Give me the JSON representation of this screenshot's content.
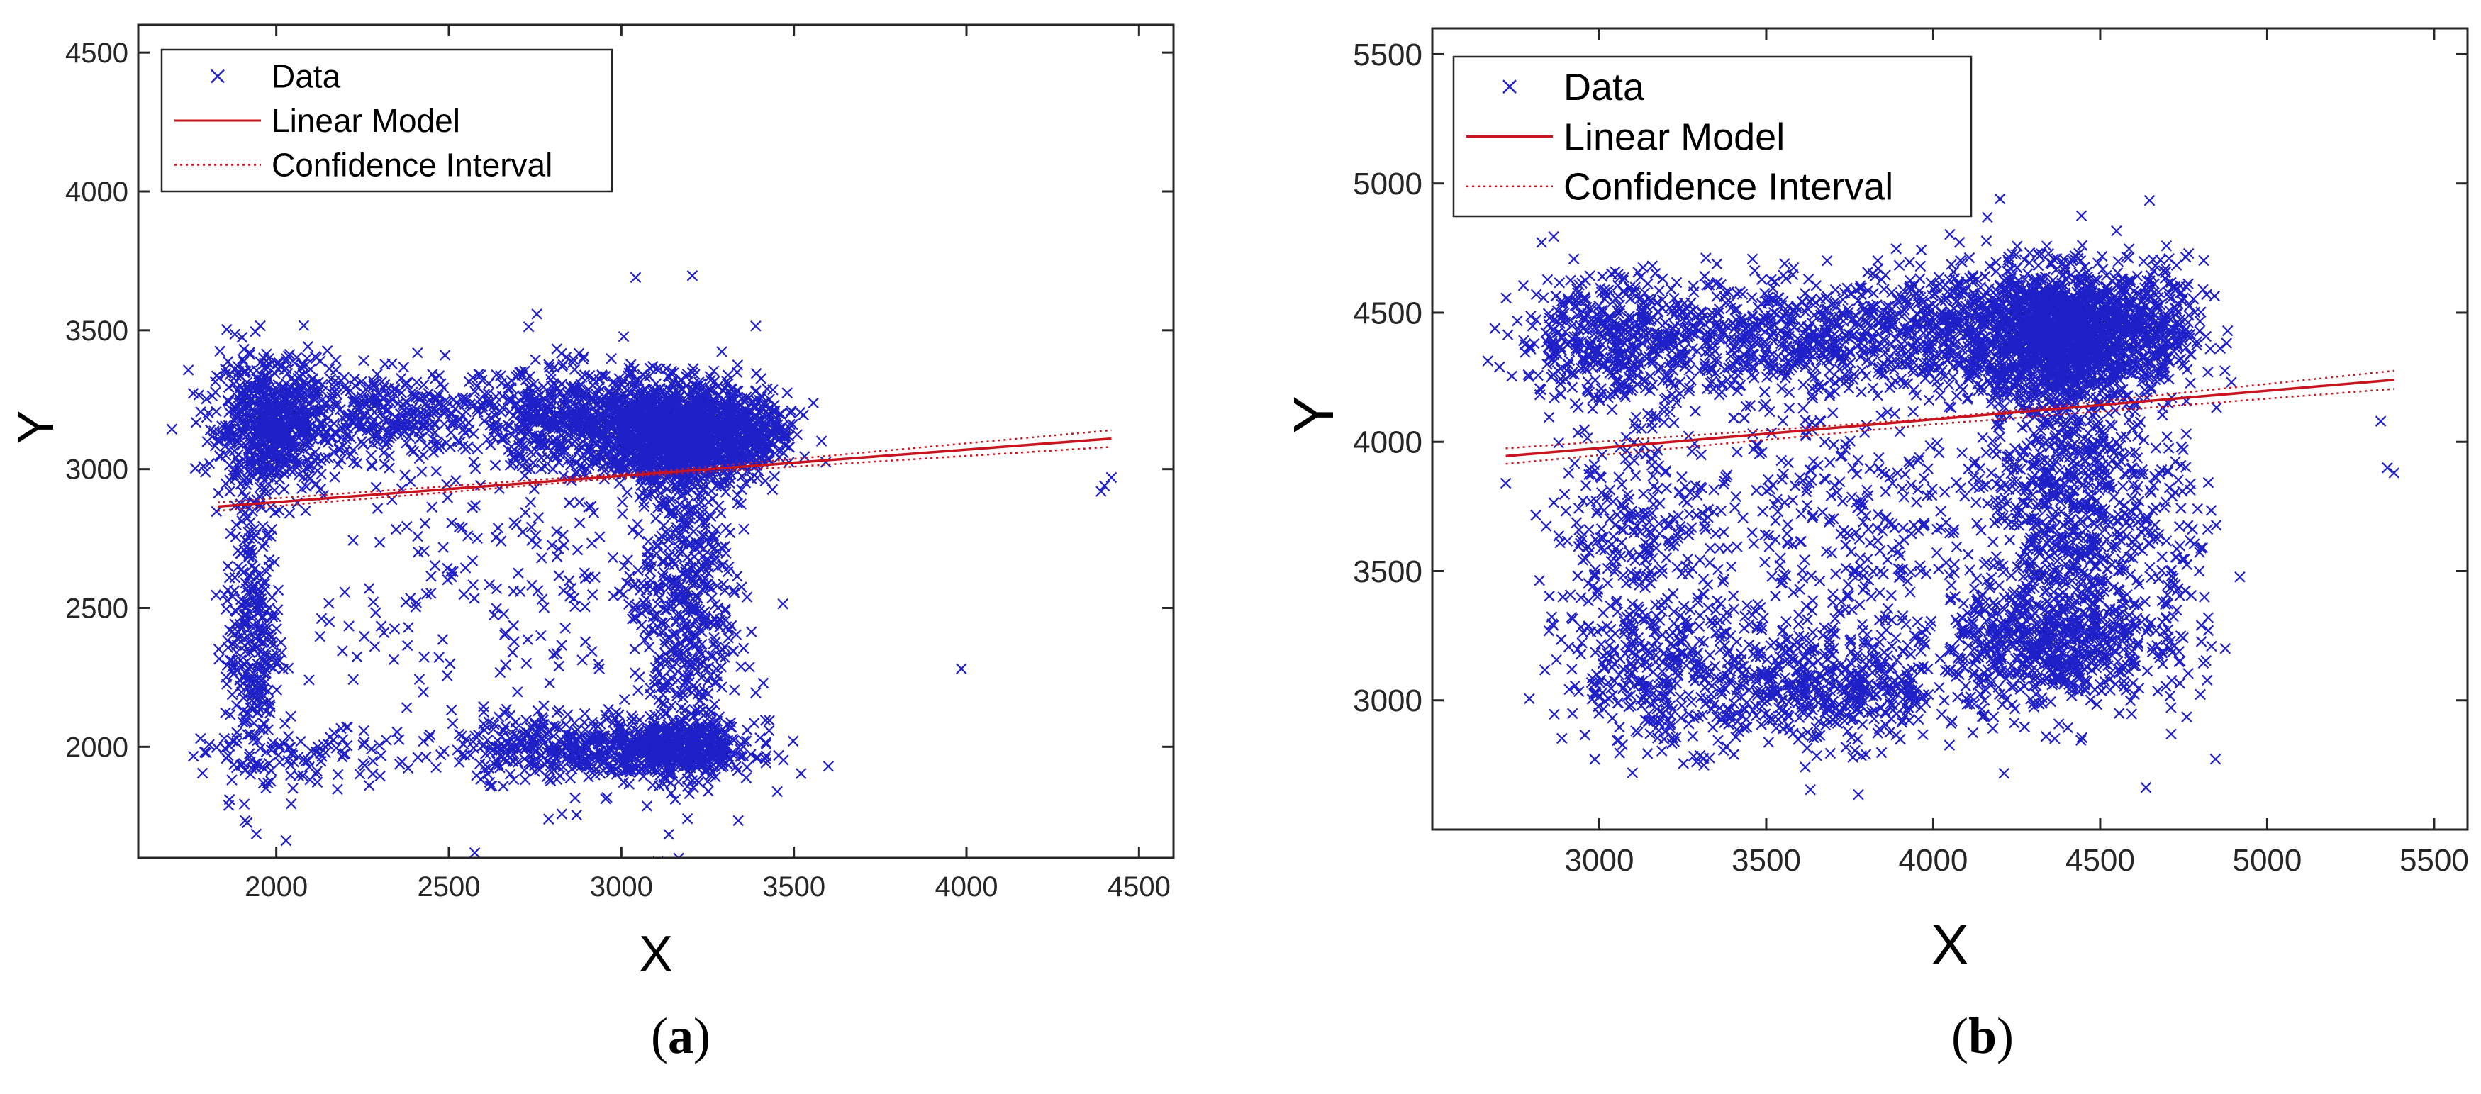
{
  "chart_data": [
    {
      "type": "scatter",
      "panel": "(a)",
      "panel_letter": "a",
      "xlabel": "X",
      "ylabel": "Y",
      "xlim": [
        1600,
        4600
      ],
      "ylim": [
        1600,
        4600
      ],
      "xticks": [
        2000,
        2500,
        3000,
        3500,
        4000,
        4500
      ],
      "yticks": [
        2000,
        2500,
        3000,
        3500,
        4000,
        4500
      ],
      "legend": {
        "position": "top-left",
        "entries": [
          "Data",
          "Linear Model",
          "Confidence Interval"
        ]
      },
      "colors": {
        "data": "#2020c8",
        "model": "#c8141e",
        "ci": "#c8141e"
      },
      "series": [
        {
          "name": "Data",
          "kind": "scatter",
          "marker": "x",
          "point_count_estimate": 6000,
          "clusters": [
            {
              "cx": 1990,
              "cy": 3160,
              "sx": 90,
              "sy": 120,
              "n": 700,
              "desc": "dense band at left"
            },
            {
              "cx": 2350,
              "cy": 3200,
              "sx": 180,
              "sy": 80,
              "n": 350,
              "desc": "upper band middle"
            },
            {
              "cx": 2850,
              "cy": 3180,
              "sx": 130,
              "sy": 90,
              "n": 500,
              "desc": "upper band right"
            },
            {
              "cx": 3160,
              "cy": 3130,
              "sx": 120,
              "sy": 90,
              "n": 1500,
              "desc": "densest blob"
            },
            {
              "cx": 3380,
              "cy": 3120,
              "sx": 70,
              "sy": 70,
              "n": 200,
              "desc": "tail of blob"
            },
            {
              "cx": 1930,
              "cy": 2400,
              "sx": 40,
              "sy": 280,
              "n": 320,
              "desc": "left vertical strip"
            },
            {
              "cx": 3180,
              "cy": 2550,
              "sx": 70,
              "sy": 320,
              "n": 550,
              "desc": "right vertical strip"
            },
            {
              "cx": 2850,
              "cy": 2000,
              "sx": 170,
              "sy": 60,
              "n": 400,
              "desc": "bottom band"
            },
            {
              "cx": 3170,
              "cy": 1990,
              "sx": 110,
              "sy": 50,
              "n": 500,
              "desc": "bottom right dense"
            },
            {
              "cx": 2700,
              "cy": 2600,
              "sx": 300,
              "sy": 350,
              "n": 250,
              "desc": "sparse middle"
            },
            {
              "cx": 2100,
              "cy": 1960,
              "sx": 150,
              "sy": 50,
              "n": 100,
              "desc": "bottom left"
            }
          ],
          "outliers": [
            [
              4400,
              2940
            ],
            [
              4420,
              2970
            ],
            [
              4390,
              2920
            ],
            [
              3600,
              1930
            ]
          ]
        },
        {
          "name": "Linear Model",
          "kind": "line",
          "x": [
            1830,
            4420
          ],
          "y": [
            2865,
            3110
          ]
        },
        {
          "name": "Confidence Interval",
          "kind": "band",
          "x": [
            1830,
            3100,
            4420
          ],
          "lower": [
            2850,
            2978,
            3080
          ],
          "upper": [
            2880,
            2992,
            3140
          ]
        }
      ]
    },
    {
      "type": "scatter",
      "panel": "(b)",
      "panel_letter": "b",
      "xlabel": "X",
      "ylabel": "Y",
      "xlim": [
        2500,
        5600
      ],
      "ylim": [
        2500,
        5600
      ],
      "xticks": [
        3000,
        3500,
        4000,
        4500,
        5000,
        5500
      ],
      "yticks": [
        3000,
        3500,
        4000,
        4500,
        5000,
        5500
      ],
      "legend": {
        "position": "top-left",
        "entries": [
          "Data",
          "Linear Model",
          "Confidence Interval"
        ]
      },
      "colors": {
        "data": "#2020c8",
        "model": "#c8141e",
        "ci": "#c8141e"
      },
      "series": [
        {
          "name": "Data",
          "kind": "scatter",
          "marker": "x",
          "point_count_estimate": 6500,
          "clusters": [
            {
              "cx": 3050,
              "cy": 4400,
              "sx": 150,
              "sy": 130,
              "n": 500,
              "desc": "upper left"
            },
            {
              "cx": 3600,
              "cy": 4400,
              "sx": 250,
              "sy": 110,
              "n": 600,
              "desc": "upper middle"
            },
            {
              "cx": 4380,
              "cy": 4420,
              "sx": 140,
              "sy": 120,
              "n": 1500,
              "desc": "densest blob"
            },
            {
              "cx": 4100,
              "cy": 4450,
              "sx": 180,
              "sy": 130,
              "n": 400,
              "desc": "upper center"
            },
            {
              "cx": 4650,
              "cy": 4420,
              "sx": 80,
              "sy": 140,
              "n": 250,
              "desc": "upper right"
            },
            {
              "cx": 4400,
              "cy": 3800,
              "sx": 120,
              "sy": 300,
              "n": 700,
              "desc": "right vertical strip"
            },
            {
              "cx": 4350,
              "cy": 3220,
              "sx": 150,
              "sy": 120,
              "n": 600,
              "desc": "bottom right"
            },
            {
              "cx": 3700,
              "cy": 3050,
              "sx": 200,
              "sy": 110,
              "n": 500,
              "desc": "bottom center"
            },
            {
              "cx": 3200,
              "cy": 3100,
              "sx": 160,
              "sy": 140,
              "n": 350,
              "desc": "bottom left"
            },
            {
              "cx": 3100,
              "cy": 3650,
              "sx": 120,
              "sy": 220,
              "n": 250,
              "desc": "left side"
            },
            {
              "cx": 3750,
              "cy": 3650,
              "sx": 350,
              "sy": 300,
              "n": 450,
              "desc": "sparse middle"
            },
            {
              "cx": 4700,
              "cy": 3500,
              "sx": 80,
              "sy": 300,
              "n": 150,
              "desc": "right edge"
            }
          ],
          "outliers": [
            [
              5340,
              4080
            ],
            [
              5360,
              3900
            ],
            [
              5380,
              3880
            ],
            [
              2720,
              3840
            ],
            [
              4200,
              4940
            ]
          ]
        },
        {
          "name": "Linear Model",
          "kind": "line",
          "x": [
            2720,
            5380
          ],
          "y": [
            3945,
            4240
          ]
        },
        {
          "name": "Confidence Interval",
          "kind": "band",
          "x": [
            2720,
            4000,
            5380
          ],
          "lower": [
            3915,
            4068,
            4205
          ],
          "upper": [
            3975,
            4090,
            4275
          ]
        }
      ]
    }
  ]
}
